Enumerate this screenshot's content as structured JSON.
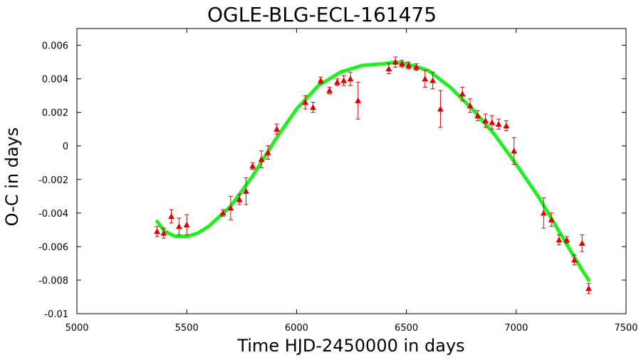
{
  "chart_data": {
    "type": "scatter",
    "title": "OGLE-BLG-ECL-161475",
    "xlabel": "Time HJD-2450000 in days",
    "ylabel": "O-C in days",
    "xlim": [
      5000,
      7500
    ],
    "ylim": [
      -0.01,
      0.007
    ],
    "x_ticks": [
      5000,
      5500,
      6000,
      6500,
      7000,
      7500
    ],
    "x_tick_labels": [
      "5000",
      "5500",
      "6000",
      "6500",
      "7000",
      "7500"
    ],
    "y_ticks": [
      0.006,
      0.004,
      0.002,
      0,
      -0.002,
      -0.004,
      -0.006,
      -0.008,
      -0.01
    ],
    "y_tick_labels": [
      "0.006",
      "0.004",
      "0.002",
      "0",
      "-0.002",
      "-0.004",
      "-0.006",
      "-0.008",
      "-0.01"
    ],
    "grid": false,
    "legend": "none",
    "colors": {
      "points": "#e00000",
      "fit": "#22ee22",
      "frame": "#000000"
    },
    "series": [
      {
        "kind": "points_with_errorbars",
        "marker": "triangle",
        "points": [
          {
            "x": 5365,
            "y": -0.0051,
            "err": 0.0003
          },
          {
            "x": 5395,
            "y": -0.0052,
            "err": 0.0003
          },
          {
            "x": 5430,
            "y": -0.0042,
            "err": 0.0004
          },
          {
            "x": 5465,
            "y": -0.0048,
            "err": 0.0005
          },
          {
            "x": 5500,
            "y": -0.0047,
            "err": 0.0006
          },
          {
            "x": 5665,
            "y": -0.004,
            "err": 0.0002
          },
          {
            "x": 5700,
            "y": -0.0037,
            "err": 0.0007
          },
          {
            "x": 5740,
            "y": -0.0032,
            "err": 0.0003
          },
          {
            "x": 5770,
            "y": -0.0027,
            "err": 0.0008
          },
          {
            "x": 5800,
            "y": -0.0012,
            "err": 0.0002
          },
          {
            "x": 5840,
            "y": -0.0008,
            "err": 0.0005
          },
          {
            "x": 5870,
            "y": -0.0004,
            "err": 0.0004
          },
          {
            "x": 5910,
            "y": 0.001,
            "err": 0.0003
          },
          {
            "x": 6040,
            "y": 0.0026,
            "err": 0.0004
          },
          {
            "x": 6075,
            "y": 0.0023,
            "err": 0.0003
          },
          {
            "x": 6110,
            "y": 0.0039,
            "err": 0.0002
          },
          {
            "x": 6150,
            "y": 0.0033,
            "err": 0.0002
          },
          {
            "x": 6185,
            "y": 0.0038,
            "err": 0.0002
          },
          {
            "x": 6215,
            "y": 0.0039,
            "err": 0.0003
          },
          {
            "x": 6245,
            "y": 0.004,
            "err": 0.0004
          },
          {
            "x": 6280,
            "y": 0.0027,
            "err": 0.0011
          },
          {
            "x": 6420,
            "y": 0.0046,
            "err": 0.0003
          },
          {
            "x": 6450,
            "y": 0.005,
            "err": 0.0003
          },
          {
            "x": 6480,
            "y": 0.0049,
            "err": 0.0002
          },
          {
            "x": 6510,
            "y": 0.0048,
            "err": 0.0002
          },
          {
            "x": 6545,
            "y": 0.0047,
            "err": 0.0002
          },
          {
            "x": 6585,
            "y": 0.004,
            "err": 0.0005
          },
          {
            "x": 6620,
            "y": 0.0039,
            "err": 0.0005
          },
          {
            "x": 6655,
            "y": 0.0022,
            "err": 0.0011
          },
          {
            "x": 6755,
            "y": 0.0031,
            "err": 0.0004
          },
          {
            "x": 6790,
            "y": 0.0024,
            "err": 0.0004
          },
          {
            "x": 6825,
            "y": 0.0018,
            "err": 0.0003
          },
          {
            "x": 6860,
            "y": 0.0015,
            "err": 0.0004
          },
          {
            "x": 6890,
            "y": 0.0014,
            "err": 0.0004
          },
          {
            "x": 6920,
            "y": 0.0013,
            "err": 0.0003
          },
          {
            "x": 6955,
            "y": 0.0012,
            "err": 0.0003
          },
          {
            "x": 6990,
            "y": -0.0003,
            "err": 0.0008
          },
          {
            "x": 7125,
            "y": -0.004,
            "err": 0.0009
          },
          {
            "x": 7160,
            "y": -0.0044,
            "err": 0.0004
          },
          {
            "x": 7195,
            "y": -0.0056,
            "err": 0.0003
          },
          {
            "x": 7230,
            "y": -0.0056,
            "err": 0.0002
          },
          {
            "x": 7265,
            "y": -0.0068,
            "err": 0.0003
          },
          {
            "x": 7300,
            "y": -0.0058,
            "err": 0.0005
          },
          {
            "x": 7330,
            "y": -0.0085,
            "err": 0.0003
          }
        ]
      },
      {
        "kind": "fit_curve",
        "points": [
          {
            "x": 5365,
            "y": -0.0045
          },
          {
            "x": 5400,
            "y": -0.0051
          },
          {
            "x": 5450,
            "y": -0.0054
          },
          {
            "x": 5500,
            "y": -0.0054
          },
          {
            "x": 5550,
            "y": -0.0052
          },
          {
            "x": 5600,
            "y": -0.0048
          },
          {
            "x": 5700,
            "y": -0.0036
          },
          {
            "x": 5800,
            "y": -0.0018
          },
          {
            "x": 5900,
            "y": 0.0003
          },
          {
            "x": 6000,
            "y": 0.0022
          },
          {
            "x": 6100,
            "y": 0.0036
          },
          {
            "x": 6200,
            "y": 0.0044
          },
          {
            "x": 6300,
            "y": 0.0048
          },
          {
            "x": 6400,
            "y": 0.0049
          },
          {
            "x": 6450,
            "y": 0.005
          },
          {
            "x": 6500,
            "y": 0.0049
          },
          {
            "x": 6600,
            "y": 0.0045
          },
          {
            "x": 6700,
            "y": 0.0035
          },
          {
            "x": 6800,
            "y": 0.0022
          },
          {
            "x": 6900,
            "y": 0.0007
          },
          {
            "x": 7000,
            "y": -0.0011
          },
          {
            "x": 7100,
            "y": -0.003
          },
          {
            "x": 7200,
            "y": -0.0052
          },
          {
            "x": 7300,
            "y": -0.0074
          },
          {
            "x": 7330,
            "y": -0.008
          }
        ]
      }
    ]
  }
}
